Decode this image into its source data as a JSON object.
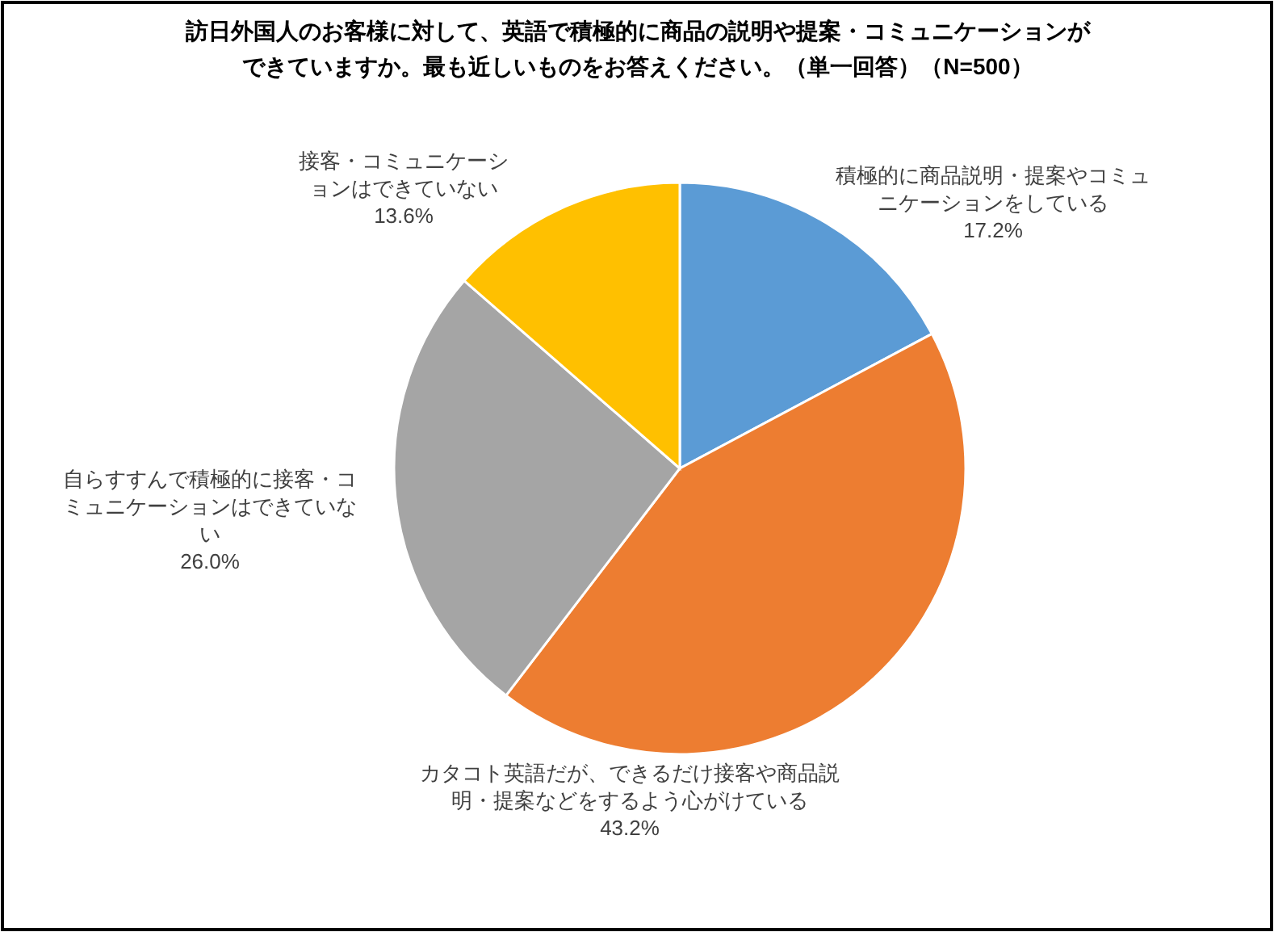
{
  "chart_data": {
    "type": "pie",
    "title": "訪日外国人のお客様に対して、英語で積極的に商品の説明や提案・コミュニケーションができていますか。最も近しいものをお答えください。（単一回答）（N=500）",
    "categories": [
      "積極的に商品説明・提案やコミュニケーションをしている",
      "カタコト英語だが、できるだけ接客や商品説明・提案などをするよう心がけている",
      "自らすすんで積極的に接客・コミュニケーションはできていない",
      "接客・コミュニケーションはできていない"
    ],
    "values": [
      17.2,
      43.2,
      26.0,
      13.6
    ],
    "value_labels": [
      "17.2%",
      "43.2%",
      "26.0%",
      "13.6%"
    ],
    "colors": [
      "#5b9bd5",
      "#ed7d31",
      "#a5a5a5",
      "#ffc000"
    ]
  }
}
